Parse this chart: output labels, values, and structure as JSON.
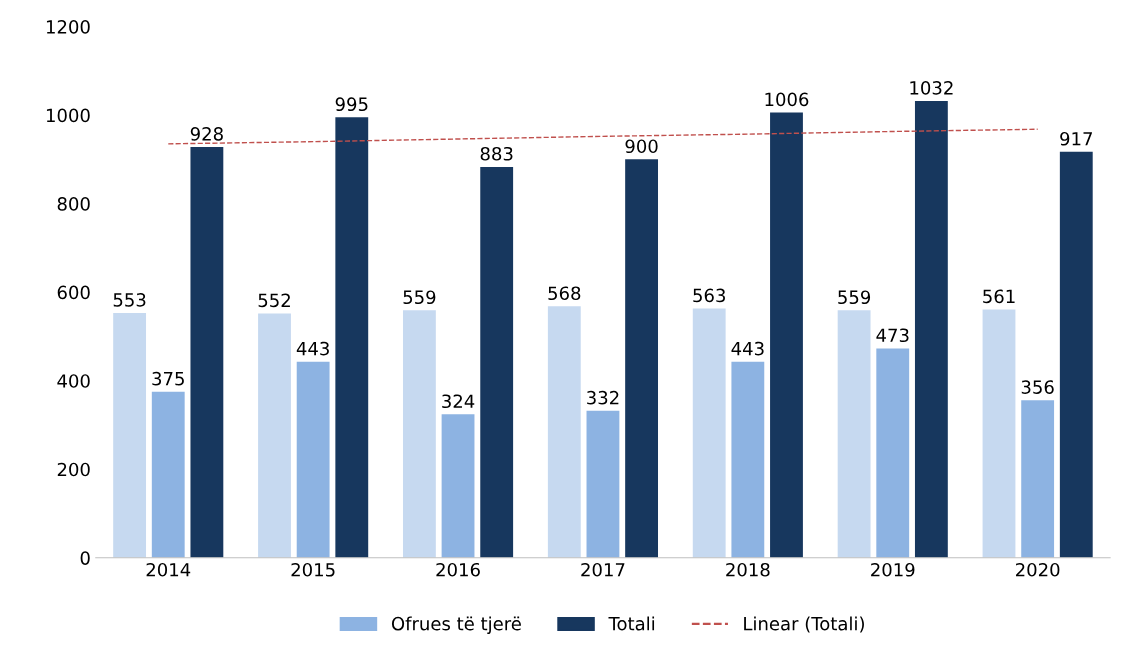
{
  "chart_data": {
    "type": "bar",
    "categories": [
      "2014",
      "2015",
      "2016",
      "2017",
      "2018",
      "2019",
      "2020"
    ],
    "series": [
      {
        "color": "#c6d9f0",
        "values": [
          553,
          552,
          559,
          568,
          563,
          559,
          561
        ],
        "value_labels": [
          "553",
          "552",
          "559",
          "568",
          "563",
          "559",
          "561"
        ]
      },
      {
        "name": "Ofrues të tjerë",
        "color": "#8db3e2",
        "values": [
          375,
          443,
          324,
          332,
          443,
          473,
          356
        ],
        "value_labels": [
          "375",
          "443",
          "324",
          "332",
          "443",
          "473",
          "356"
        ]
      },
      {
        "name": "Totali",
        "color": "#17375e",
        "values": [
          928,
          995,
          883,
          900,
          1006,
          1032,
          917
        ],
        "value_labels": [
          "928",
          "995",
          "883",
          "900",
          "1006",
          "1032",
          "917"
        ]
      },
      {
        "name": "Linear (Totali)",
        "type": "line",
        "line_style": "dashed",
        "color": "#c0504d",
        "values": [
          935,
          940,
          946,
          952,
          957,
          963,
          968
        ]
      }
    ],
    "ylim": [
      0,
      1200
    ],
    "yticks": [
      0,
      200,
      400,
      600,
      800,
      1000,
      1200
    ],
    "grid": false,
    "legend": "bottom"
  }
}
